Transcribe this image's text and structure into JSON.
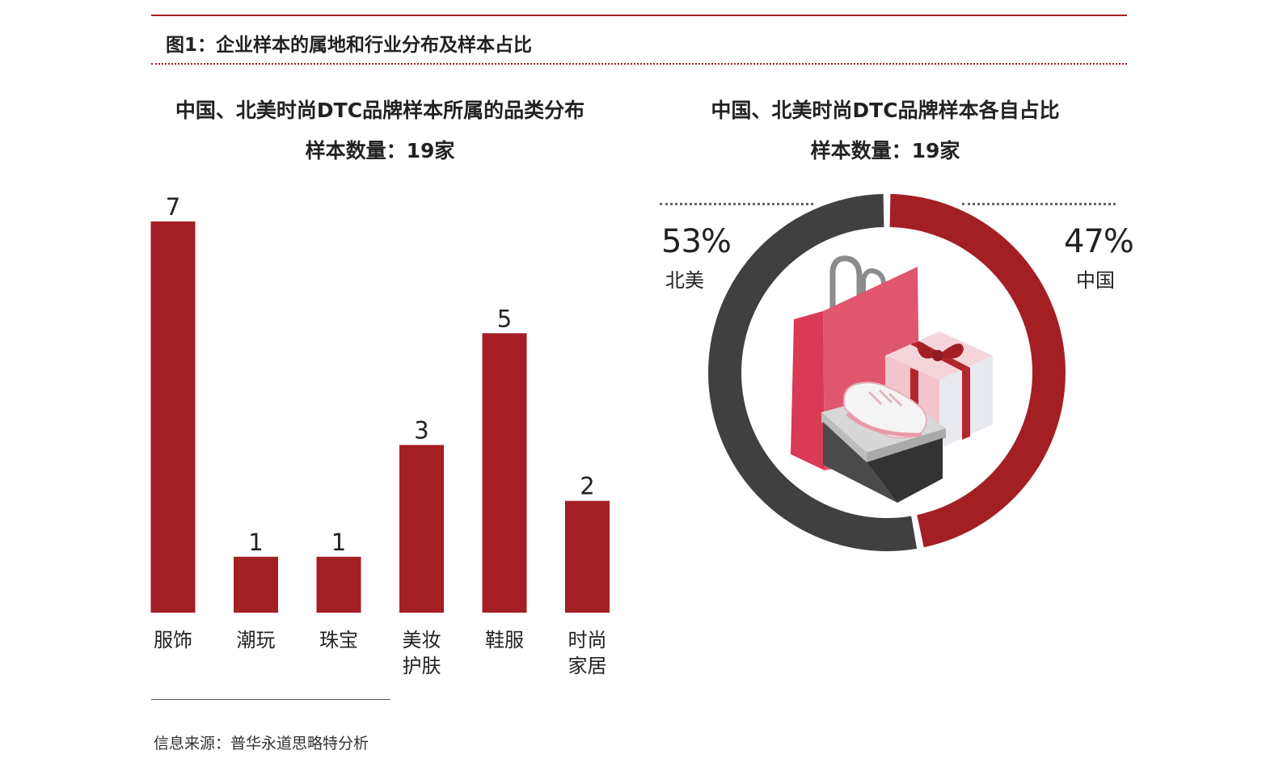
{
  "figure_title": "图1：企业样本的属地和行业分布及样本占比",
  "left_panel": {
    "title": "中国、北美时尚DTC品牌样本所属的品类分布",
    "subtitle": "样本数量：19家"
  },
  "right_panel": {
    "title": "中国、北美时尚DTC品牌样本各自占比",
    "subtitle": "样本数量：19家",
    "slices": [
      {
        "label": "中国",
        "pct_text": "47%",
        "value": 47,
        "color": "#a31f24"
      },
      {
        "label": "北美",
        "pct_text": "53%",
        "value": 53,
        "color": "#404040"
      }
    ]
  },
  "source": "信息来源：普华永道思略特分析",
  "colors": {
    "accent": "#a31f24",
    "dark": "#404040"
  },
  "chart_data": [
    {
      "type": "bar",
      "title": "中国、北美时尚DTC品牌样本所属的品类分布",
      "subtitle": "样本数量：19家",
      "categories": [
        [
          "服饰"
        ],
        [
          "潮玩"
        ],
        [
          "珠宝"
        ],
        [
          "美妆",
          "护肤"
        ],
        [
          "鞋服"
        ],
        [
          "时尚",
          "家居"
        ]
      ],
      "values": [
        7,
        1,
        1,
        3,
        5,
        2
      ],
      "ylim": [
        0,
        7
      ],
      "grid": false
    },
    {
      "type": "pie",
      "title": "中国、北美时尚DTC品牌样本各自占比",
      "subtitle": "样本数量：19家",
      "labels": [
        "中国",
        "北美"
      ],
      "values": [
        47,
        53
      ],
      "donut": true
    }
  ]
}
